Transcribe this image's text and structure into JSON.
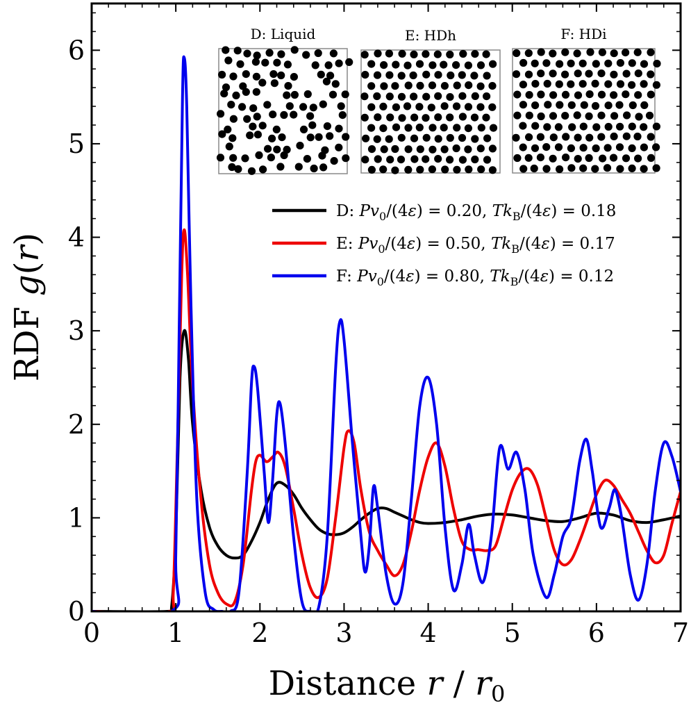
{
  "chart_data": {
    "type": "line",
    "title": "",
    "xlabel": "Distance r / r0",
    "ylabel": "RDF g(r)",
    "xlim": [
      0,
      7
    ],
    "ylim": [
      0,
      6.5
    ],
    "xticks": [
      "0",
      "1",
      "2",
      "3",
      "4",
      "5",
      "6",
      "7"
    ],
    "yticks": [
      "0",
      "1",
      "2",
      "3",
      "4",
      "5",
      "6"
    ],
    "grid": false,
    "legend_position": "upper-right",
    "series": [
      {
        "name": "D: Pv0/(4ε) = 0.20, Tk_B/(4ε) = 0.18",
        "label": {
          "prefix": "D: ",
          "p": "0.20",
          "t": "0.18"
        },
        "color": "#000000",
        "points": [
          [
            0,
            0
          ],
          [
            0.9,
            0
          ],
          [
            0.95,
            0.05
          ],
          [
            1.0,
            0.8
          ],
          [
            1.05,
            2.5
          ],
          [
            1.1,
            3.0
          ],
          [
            1.15,
            2.7
          ],
          [
            1.2,
            2.0
          ],
          [
            1.3,
            1.3
          ],
          [
            1.4,
            0.9
          ],
          [
            1.5,
            0.7
          ],
          [
            1.6,
            0.6
          ],
          [
            1.7,
            0.57
          ],
          [
            1.8,
            0.6
          ],
          [
            1.9,
            0.75
          ],
          [
            2.0,
            0.95
          ],
          [
            2.1,
            1.2
          ],
          [
            2.2,
            1.37
          ],
          [
            2.3,
            1.35
          ],
          [
            2.4,
            1.25
          ],
          [
            2.5,
            1.1
          ],
          [
            2.6,
            0.98
          ],
          [
            2.7,
            0.88
          ],
          [
            2.8,
            0.83
          ],
          [
            2.9,
            0.82
          ],
          [
            3.0,
            0.84
          ],
          [
            3.1,
            0.9
          ],
          [
            3.2,
            0.98
          ],
          [
            3.3,
            1.05
          ],
          [
            3.4,
            1.1
          ],
          [
            3.5,
            1.1
          ],
          [
            3.6,
            1.06
          ],
          [
            3.7,
            1.02
          ],
          [
            3.8,
            0.98
          ],
          [
            3.9,
            0.95
          ],
          [
            4.0,
            0.94
          ],
          [
            4.2,
            0.95
          ],
          [
            4.4,
            0.98
          ],
          [
            4.6,
            1.02
          ],
          [
            4.8,
            1.04
          ],
          [
            5.0,
            1.03
          ],
          [
            5.2,
            1.0
          ],
          [
            5.4,
            0.97
          ],
          [
            5.6,
            0.96
          ],
          [
            5.8,
            1.0
          ],
          [
            6.0,
            1.05
          ],
          [
            6.2,
            1.03
          ],
          [
            6.4,
            0.97
          ],
          [
            6.6,
            0.95
          ],
          [
            6.8,
            0.98
          ],
          [
            7.0,
            1.02
          ]
        ]
      },
      {
        "name": "E: Pv0/(4ε) = 0.50, Tk_B/(4ε) = 0.17",
        "label": {
          "prefix": "E: ",
          "p": "0.50",
          "t": "0.17"
        },
        "color": "#ee0000",
        "points": [
          [
            0,
            0
          ],
          [
            0.92,
            0
          ],
          [
            0.97,
            0.2
          ],
          [
            1.02,
            1.8
          ],
          [
            1.07,
            3.6
          ],
          [
            1.1,
            4.08
          ],
          [
            1.14,
            3.6
          ],
          [
            1.2,
            2.4
          ],
          [
            1.3,
            1.2
          ],
          [
            1.4,
            0.5
          ],
          [
            1.5,
            0.2
          ],
          [
            1.6,
            0.08
          ],
          [
            1.7,
            0.1
          ],
          [
            1.8,
            0.5
          ],
          [
            1.9,
            1.3
          ],
          [
            1.95,
            1.6
          ],
          [
            2.0,
            1.67
          ],
          [
            2.08,
            1.6
          ],
          [
            2.15,
            1.65
          ],
          [
            2.22,
            1.7
          ],
          [
            2.3,
            1.55
          ],
          [
            2.4,
            1.1
          ],
          [
            2.5,
            0.6
          ],
          [
            2.6,
            0.25
          ],
          [
            2.7,
            0.15
          ],
          [
            2.8,
            0.35
          ],
          [
            2.9,
            1.0
          ],
          [
            3.0,
            1.75
          ],
          [
            3.05,
            1.93
          ],
          [
            3.12,
            1.8
          ],
          [
            3.2,
            1.3
          ],
          [
            3.3,
            0.85
          ],
          [
            3.4,
            0.65
          ],
          [
            3.5,
            0.5
          ],
          [
            3.6,
            0.38
          ],
          [
            3.7,
            0.5
          ],
          [
            3.8,
            0.85
          ],
          [
            3.9,
            1.3
          ],
          [
            4.0,
            1.65
          ],
          [
            4.1,
            1.8
          ],
          [
            4.2,
            1.55
          ],
          [
            4.3,
            1.1
          ],
          [
            4.4,
            0.75
          ],
          [
            4.5,
            0.66
          ],
          [
            4.6,
            0.66
          ],
          [
            4.7,
            0.65
          ],
          [
            4.8,
            0.7
          ],
          [
            4.9,
            1.0
          ],
          [
            5.0,
            1.3
          ],
          [
            5.1,
            1.48
          ],
          [
            5.2,
            1.52
          ],
          [
            5.3,
            1.35
          ],
          [
            5.4,
            1.0
          ],
          [
            5.5,
            0.65
          ],
          [
            5.6,
            0.5
          ],
          [
            5.7,
            0.55
          ],
          [
            5.8,
            0.75
          ],
          [
            5.9,
            1.0
          ],
          [
            6.0,
            1.25
          ],
          [
            6.1,
            1.4
          ],
          [
            6.2,
            1.35
          ],
          [
            6.3,
            1.2
          ],
          [
            6.4,
            1.05
          ],
          [
            6.5,
            0.85
          ],
          [
            6.6,
            0.65
          ],
          [
            6.7,
            0.52
          ],
          [
            6.8,
            0.6
          ],
          [
            6.9,
            0.95
          ],
          [
            7.0,
            1.28
          ]
        ]
      },
      {
        "name": "F: Pv0/(4ε) = 0.80, Tk_B/(4ε) = 0.12",
        "label": {
          "prefix": "F: ",
          "p": "0.80",
          "t": "0.12"
        },
        "color": "#0000ee",
        "points": [
          [
            0,
            0
          ],
          [
            0.95,
            0
          ],
          [
            1.0,
            0.6
          ],
          [
            1.04,
            3.0
          ],
          [
            1.08,
            5.5
          ],
          [
            1.1,
            5.92
          ],
          [
            1.13,
            5.4
          ],
          [
            1.18,
            3.3
          ],
          [
            1.25,
            1.2
          ],
          [
            1.35,
            0.2
          ],
          [
            1.45,
            0.02
          ],
          [
            1.55,
            0
          ],
          [
            1.65,
            0
          ],
          [
            1.75,
            0.2
          ],
          [
            1.85,
            1.5
          ],
          [
            1.9,
            2.45
          ],
          [
            1.93,
            2.62
          ],
          [
            1.97,
            2.4
          ],
          [
            2.05,
            1.5
          ],
          [
            2.1,
            0.95
          ],
          [
            2.15,
            1.4
          ],
          [
            2.2,
            2.1
          ],
          [
            2.24,
            2.22
          ],
          [
            2.3,
            1.8
          ],
          [
            2.4,
            0.8
          ],
          [
            2.5,
            0.1
          ],
          [
            2.6,
            0
          ],
          [
            2.7,
            0.05
          ],
          [
            2.8,
            0.8
          ],
          [
            2.9,
            2.6
          ],
          [
            2.95,
            3.1
          ],
          [
            3.0,
            2.9
          ],
          [
            3.1,
            1.8
          ],
          [
            3.2,
            0.8
          ],
          [
            3.25,
            0.42
          ],
          [
            3.3,
            0.7
          ],
          [
            3.35,
            1.33
          ],
          [
            3.4,
            1.1
          ],
          [
            3.5,
            0.4
          ],
          [
            3.6,
            0.08
          ],
          [
            3.7,
            0.3
          ],
          [
            3.8,
            1.2
          ],
          [
            3.9,
            2.2
          ],
          [
            4.0,
            2.5
          ],
          [
            4.1,
            2.0
          ],
          [
            4.2,
            0.9
          ],
          [
            4.3,
            0.23
          ],
          [
            4.4,
            0.5
          ],
          [
            4.48,
            0.93
          ],
          [
            4.55,
            0.6
          ],
          [
            4.65,
            0.31
          ],
          [
            4.75,
            0.8
          ],
          [
            4.85,
            1.75
          ],
          [
            4.95,
            1.52
          ],
          [
            5.05,
            1.7
          ],
          [
            5.15,
            1.3
          ],
          [
            5.25,
            0.6
          ],
          [
            5.4,
            0.15
          ],
          [
            5.5,
            0.4
          ],
          [
            5.6,
            0.8
          ],
          [
            5.7,
            1.0
          ],
          [
            5.8,
            1.6
          ],
          [
            5.88,
            1.84
          ],
          [
            5.95,
            1.5
          ],
          [
            6.05,
            0.9
          ],
          [
            6.15,
            1.1
          ],
          [
            6.22,
            1.3
          ],
          [
            6.3,
            1.0
          ],
          [
            6.4,
            0.4
          ],
          [
            6.5,
            0.12
          ],
          [
            6.6,
            0.5
          ],
          [
            6.7,
            1.3
          ],
          [
            6.8,
            1.8
          ],
          [
            6.9,
            1.65
          ],
          [
            7.0,
            1.28
          ]
        ]
      }
    ],
    "insets": [
      {
        "title": "D: Liquid",
        "pattern": "liquid"
      },
      {
        "title": "E: HDh",
        "pattern": "hexagonal"
      },
      {
        "title": "F: HDi",
        "pattern": "hexagonal"
      }
    ]
  }
}
